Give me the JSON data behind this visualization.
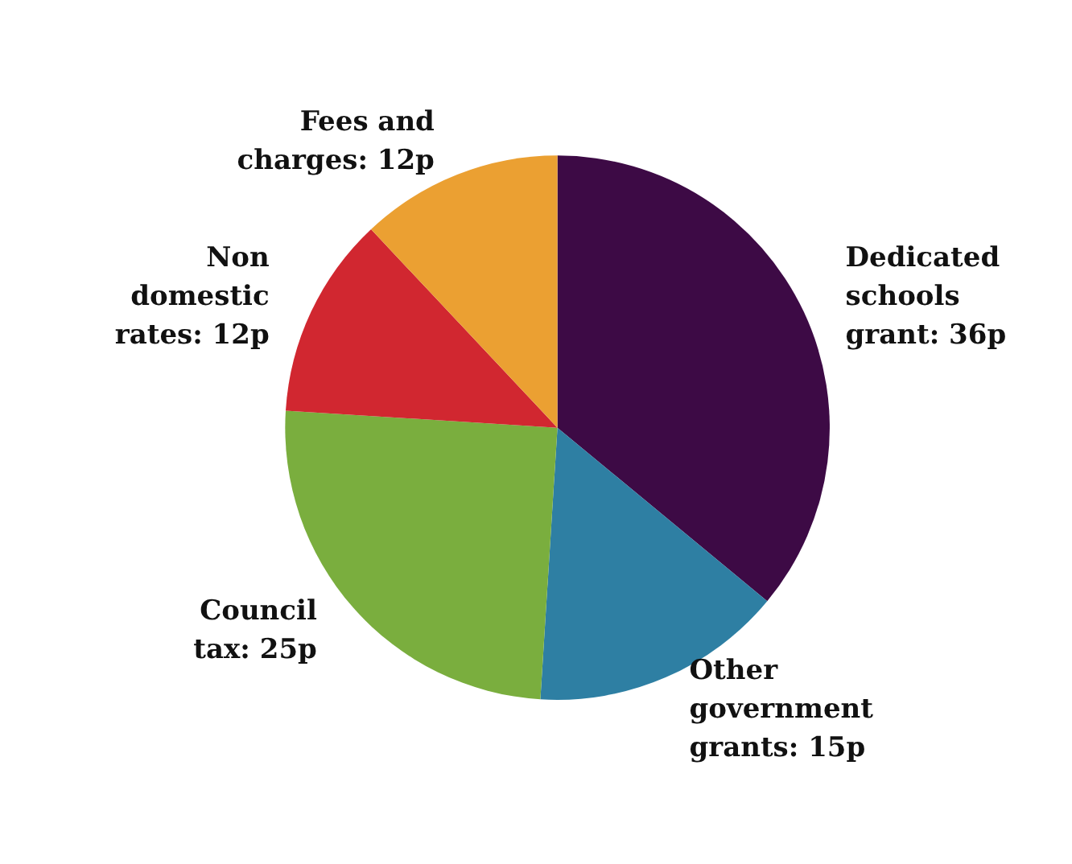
{
  "chart_data": {
    "type": "pie",
    "categories": [
      "Dedicated schools grant",
      "Other government grants",
      "Council tax",
      "Non domestic rates",
      "Fees and charges"
    ],
    "values": [
      36,
      15,
      25,
      12,
      12
    ],
    "value_labels": [
      "36p",
      "15p",
      "25p",
      "12p",
      "12p"
    ],
    "colors": [
      "#3d0a45",
      "#2e7fa3",
      "#7aae3e",
      "#d12730",
      "#eba032"
    ],
    "legend": false
  }
}
